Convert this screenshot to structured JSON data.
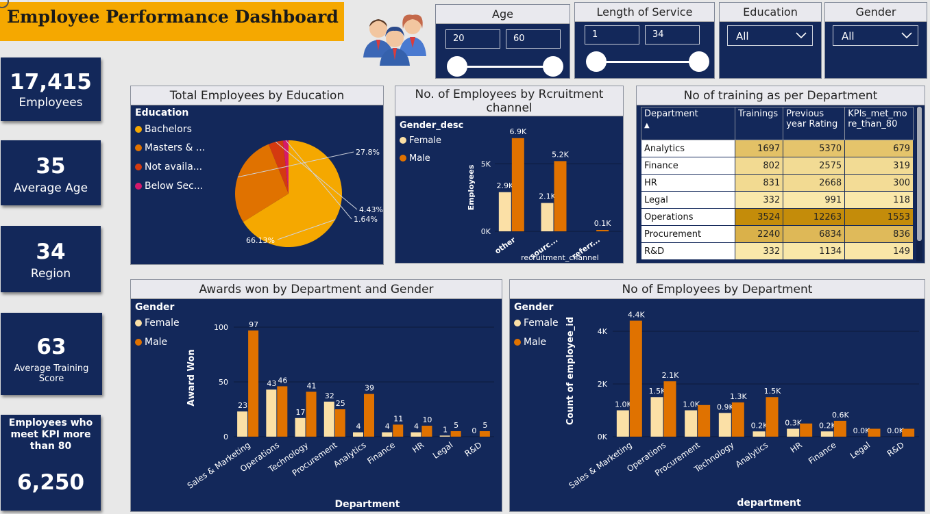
{
  "title": "Employee Performance Dashboard",
  "kpis": {
    "employees_value": "17,415",
    "employees_label": "Employees",
    "age_value": "35",
    "age_label": "Average Age",
    "region_value": "34",
    "region_label": "Region",
    "training_value": "63",
    "training_label": "Average Training Score",
    "kpi80_label": "Employees who meet KPI more than 80",
    "kpi80_value": "6,250"
  },
  "slicers": {
    "age": {
      "title": "Age",
      "min": "20",
      "max": "60"
    },
    "service": {
      "title": "Length of Service",
      "min": "1",
      "max": "34"
    },
    "education": {
      "title": "Education",
      "value": "All"
    },
    "gender": {
      "title": "Gender",
      "value": "All"
    }
  },
  "edu_panel": {
    "title": "Total Employees by Education",
    "legend_title": "Education",
    "legend": [
      "Bachelors",
      "Masters & ...",
      "Not availa...",
      "Below Sec..."
    ],
    "colors": [
      "#f5a800",
      "#e07200",
      "#d43a10",
      "#d6196b"
    ],
    "labels": [
      "66.13%",
      "27.8%",
      "4.43%",
      "1.64%"
    ]
  },
  "recruit_panel": {
    "title_line1": "No. of Employees by Rcruitment",
    "title_line2": "channel",
    "legend_title": "Gender_desc",
    "legend": [
      "Female",
      "Male"
    ],
    "ylabel": "Employees",
    "xlabel": "recruitment_channel",
    "yticks": [
      "5K",
      "0K"
    ]
  },
  "training_panel": {
    "title": "No of training as per Department",
    "columns": [
      "Department",
      "Trainings",
      "Previous year Rating",
      "KPIs_met_more_than_80"
    ],
    "column_display": [
      "Department",
      "Trainings",
      "Previous\nyear Rating",
      "KPIs_met_mo\nre_than_80"
    ],
    "sort_glyph": "▲",
    "rows": [
      [
        "Analytics",
        "1697",
        "5370",
        "679"
      ],
      [
        "Finance",
        "802",
        "2575",
        "319"
      ],
      [
        "HR",
        "831",
        "2668",
        "300"
      ],
      [
        "Legal",
        "332",
        "991",
        "118"
      ],
      [
        "Operations",
        "3524",
        "12263",
        "1553"
      ],
      [
        "Procurement",
        "2240",
        "6834",
        "836"
      ],
      [
        "R&D",
        "332",
        "1134",
        "149"
      ]
    ]
  },
  "awards_panel": {
    "title": "Awards won by Department and Gender",
    "legend_title": "Gender",
    "legend": [
      "Female",
      "Male"
    ],
    "ylabel": "Award Won",
    "xlabel": "Department"
  },
  "dept_panel": {
    "title": "No of Employees by Department",
    "legend_title": "Gender",
    "legend": [
      "Female",
      "Male"
    ],
    "ylabel": "Count of employee_id",
    "xlabel": "department"
  },
  "chart_data": [
    {
      "type": "pie",
      "title": "Total Employees by Education",
      "categories": [
        "Bachelors",
        "Masters & ...",
        "Not availa...",
        "Below Sec..."
      ],
      "values": [
        66.13,
        27.8,
        4.43,
        1.64
      ],
      "legend": "top-left"
    },
    {
      "type": "bar",
      "title": "No. of Employees by Rcruitment channel",
      "categories": [
        "other",
        "sourc...",
        "referr..."
      ],
      "series": [
        {
          "name": "Female",
          "values": [
            2900,
            2100,
            0
          ],
          "labels": [
            "2.9K",
            "2.1K",
            ""
          ]
        },
        {
          "name": "Male",
          "values": [
            6900,
            5200,
            100
          ],
          "labels": [
            "6.9K",
            "5.2K",
            "0.1K"
          ]
        }
      ],
      "xlabel": "recruitment_channel",
      "ylabel": "Employees",
      "ylim": [
        0,
        7500
      ],
      "yticks": [
        0,
        5000
      ],
      "grid": true
    },
    {
      "type": "bar",
      "title": "Awards won by Department and Gender",
      "categories": [
        "Sales & Marketing",
        "Operations",
        "Technology",
        "Procurement",
        "Analytics",
        "Finance",
        "HR",
        "Legal",
        "R&D"
      ],
      "series": [
        {
          "name": "Female",
          "values": [
            23,
            43,
            17,
            32,
            4,
            4,
            4,
            1,
            0
          ]
        },
        {
          "name": "Male",
          "values": [
            97,
            46,
            41,
            25,
            39,
            11,
            10,
            5,
            5
          ]
        }
      ],
      "xlabel": "Department",
      "ylabel": "Award Won",
      "ylim": [
        0,
        110
      ],
      "yticks": [
        0,
        50,
        100
      ],
      "grid": true
    },
    {
      "type": "bar",
      "title": "No of Employees by Department",
      "categories": [
        "Sales & Marketing",
        "Operations",
        "Procurement",
        "Technology",
        "Analytics",
        "HR",
        "Finance",
        "Legal",
        "R&D"
      ],
      "series": [
        {
          "name": "Female",
          "values": [
            1000,
            1500,
            1000,
            900,
            200,
            300,
            200,
            0,
            0
          ],
          "labels": [
            "1.0K",
            "1.5K",
            "1.0K",
            "0.9K",
            "0.2K",
            "0.3K",
            "0.2K",
            "0.0K",
            "0.0K"
          ]
        },
        {
          "name": "Male",
          "values": [
            4400,
            2100,
            1200,
            1300,
            1500,
            500,
            600,
            300,
            300
          ],
          "labels": [
            "4.4K",
            "2.1K",
            "",
            "1.3K",
            "1.5K",
            "",
            "0.6K",
            "",
            ""
          ]
        }
      ],
      "xlabel": "department",
      "ylabel": "Count of employee_id",
      "ylim": [
        0,
        4700
      ],
      "yticks": [
        0,
        2000,
        4000
      ],
      "ytick_labels": [
        "0K",
        "2K",
        "4K"
      ],
      "grid": true
    }
  ]
}
